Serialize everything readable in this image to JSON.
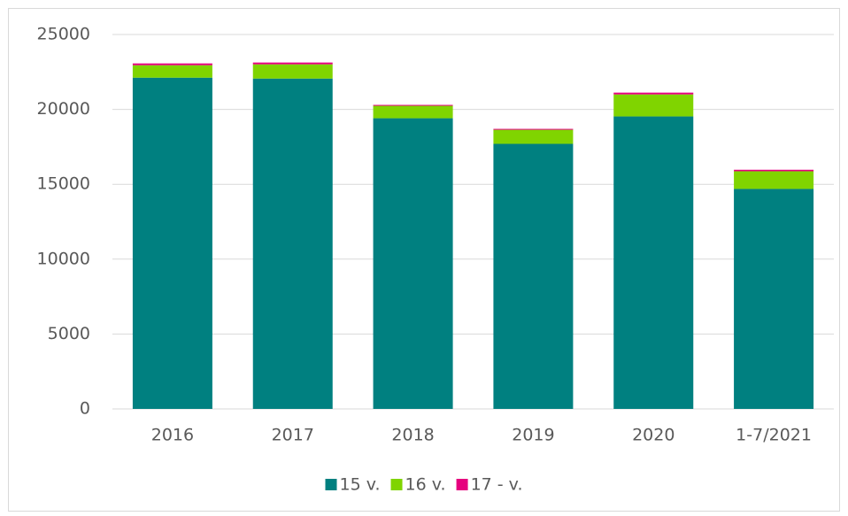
{
  "chart_data": {
    "type": "stacked-bar",
    "categories": [
      "2016",
      "2017",
      "2018",
      "2019",
      "2020",
      "1-7/2021"
    ],
    "series": [
      {
        "name": "15 v.",
        "color": "#008080",
        "values": [
          22120,
          22060,
          19410,
          17700,
          19530,
          14690
        ]
      },
      {
        "name": "16 v.",
        "color": "#80d400",
        "values": [
          830,
          950,
          830,
          940,
          1470,
          1180
        ]
      },
      {
        "name": "17 - v.",
        "color": "#e6007e",
        "values": [
          120,
          120,
          60,
          60,
          120,
          100
        ]
      }
    ],
    "ylim": [
      0,
      25000
    ],
    "yticks": [
      0,
      5000,
      10000,
      15000,
      20000,
      25000
    ],
    "grid": true,
    "legend": "bottom"
  }
}
